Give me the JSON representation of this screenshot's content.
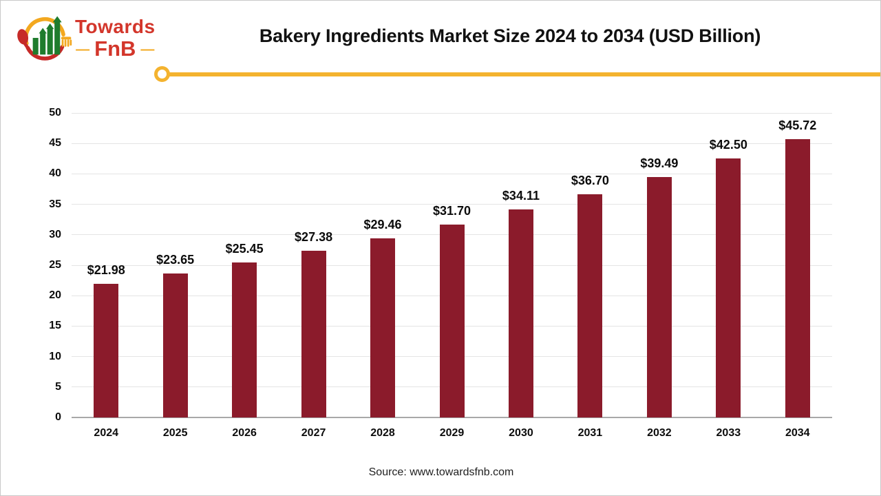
{
  "logo": {
    "brand_line1": "Towards",
    "brand_line2": "FnB",
    "dash": "—",
    "colors": {
      "red": "#d3362b",
      "yellow": "#f3a81f",
      "green": "#1f7c2d"
    }
  },
  "header": {
    "title": "Bakery Ingredients Market Size 2024 to 2034 (USD Billion)"
  },
  "chart_data": {
    "type": "bar",
    "title": "Bakery Ingredients Market Size 2024 to 2034 (USD Billion)",
    "categories": [
      "2024",
      "2025",
      "2026",
      "2027",
      "2028",
      "2029",
      "2030",
      "2031",
      "2032",
      "2033",
      "2034"
    ],
    "values": [
      21.98,
      23.65,
      25.45,
      27.38,
      29.46,
      31.7,
      34.11,
      36.7,
      39.49,
      42.5,
      45.72
    ],
    "data_labels": [
      "$21.98",
      "$23.65",
      "$25.45",
      "$27.38",
      "$29.46",
      "$31.70",
      "$34.11",
      "$36.70",
      "$39.49",
      "$42.50",
      "$45.72"
    ],
    "xlabel": "",
    "ylabel": "",
    "ylim": [
      0,
      50
    ],
    "ytick_step": 5,
    "yticks": [
      0,
      5,
      10,
      15,
      20,
      25,
      30,
      35,
      40,
      45,
      50
    ],
    "grid": true,
    "legend": "none",
    "bar_color": "#8b1b2b",
    "gridline_color": "#e4e4e4",
    "axis_color": "#a8a8a8",
    "accent_color": "#f4b32f"
  },
  "footer": {
    "source": "Source: www.towardsfnb.com"
  }
}
